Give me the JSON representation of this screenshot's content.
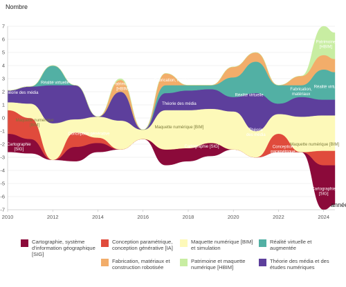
{
  "chart_data": {
    "type": "area",
    "subtype": "streamgraph",
    "ylabel": "Nombre",
    "xlabel": "année",
    "xlim": [
      2010,
      2024.5
    ],
    "ylim": [
      -7,
      7
    ],
    "x_ticks": [
      2010,
      2012,
      2014,
      2016,
      2018,
      2020,
      2022,
      2024
    ],
    "y_ticks": [
      -7,
      -6,
      -5,
      -4,
      -3,
      -2,
      -1,
      0,
      1,
      2,
      3,
      4,
      5,
      6,
      7
    ],
    "x": [
      2010,
      2011,
      2012,
      2013,
      2014,
      2015,
      2016,
      2017,
      2018,
      2019,
      2020,
      2021,
      2022,
      2023,
      2024,
      2024.5
    ],
    "series": [
      {
        "key": "sig",
        "name": "Cartographie, système d'information géographique [SIG]",
        "color": "#8b0a3a",
        "lower": [
          -2.6,
          -2.7,
          -3.2,
          -3.3,
          -2.6,
          -2.4,
          -1.6,
          -3.6,
          -3.3,
          -2.9,
          -2.4,
          -3.0,
          -2.6,
          -2.6,
          -7.0,
          -6.6
        ],
        "upper": [
          -1.2,
          -1.6,
          -3.2,
          -2.2,
          -1.9,
          -2.4,
          -1.6,
          -2.4,
          -2.3,
          -1.9,
          -2.4,
          -3.0,
          -2.6,
          -2.6,
          -3.6,
          -3.6
        ]
      },
      {
        "key": "ia",
        "name": "Conception paramétrique, conception générative [IA]",
        "color": "#e04b3c",
        "lower": [
          -1.2,
          -1.6,
          -3.2,
          -2.2,
          -1.9,
          -2.4,
          -1.6,
          -2.4,
          -2.3,
          -1.9,
          -2.4,
          -3.0,
          -2.6,
          -2.6,
          -3.6,
          -3.6
        ],
        "upper": [
          0.6,
          0.0,
          -3.2,
          -1.1,
          -1.5,
          -2.4,
          -1.6,
          -2.4,
          -2.3,
          -1.9,
          -2.4,
          -3.0,
          -1.2,
          -2.6,
          -2.5,
          -2.5
        ]
      },
      {
        "key": "bim",
        "name": "Maquette numérique [BIM] et simulation",
        "color": "#fdf9b9",
        "lower": [
          0.6,
          0.0,
          -3.2,
          -1.1,
          -1.5,
          -2.4,
          -1.6,
          -2.4,
          -2.3,
          -1.9,
          -2.4,
          -3.0,
          -1.2,
          -2.6,
          -2.5,
          -2.5
        ],
        "upper": [
          1.2,
          1.1,
          -0.4,
          -0.1,
          0.1,
          -0.2,
          -0.9,
          0.6,
          0.6,
          0.7,
          0.5,
          -1.0,
          0.3,
          0.1,
          0.2,
          0.2
        ]
      },
      {
        "key": "media",
        "name": "Théorie des média et des études numériques",
        "color": "#5d3f9c",
        "lower": [
          1.2,
          1.1,
          -0.4,
          -0.1,
          0.1,
          -0.2,
          -0.9,
          0.6,
          0.6,
          0.7,
          0.5,
          -1.0,
          0.3,
          0.1,
          0.2,
          0.2
        ],
        "upper": [
          2.1,
          2.4,
          2.5,
          2.5,
          0.1,
          2.0,
          -0.9,
          1.9,
          2.1,
          2.2,
          1.6,
          1.9,
          1.1,
          1.6,
          1.4,
          1.4
        ]
      },
      {
        "key": "vr",
        "name": "Réalité virtuelle et augmentée",
        "color": "#52b0a4",
        "lower": [
          2.1,
          2.4,
          2.5,
          2.5,
          0.1,
          2.0,
          -0.9,
          1.9,
          2.1,
          2.2,
          1.6,
          1.9,
          1.1,
          1.6,
          1.4,
          1.4
        ],
        "upper": [
          2.1,
          2.4,
          4.0,
          2.5,
          0.1,
          2.0,
          -0.9,
          2.5,
          2.5,
          2.5,
          3.1,
          4.3,
          2.5,
          2.5,
          3.7,
          3.5
        ]
      },
      {
        "key": "fab",
        "name": "Fabrication, matériaux et construction robotisée",
        "color": "#f2ad6a",
        "lower": [
          2.1,
          2.4,
          4.0,
          2.5,
          0.1,
          2.0,
          -0.9,
          2.5,
          2.5,
          2.5,
          3.1,
          4.3,
          2.5,
          2.5,
          3.7,
          3.5
        ],
        "upper": [
          2.1,
          2.4,
          4.0,
          2.5,
          0.1,
          2.9,
          -0.9,
          3.4,
          2.5,
          2.5,
          3.9,
          5.0,
          2.5,
          3.2,
          4.8,
          4.5
        ]
      },
      {
        "key": "hbim",
        "name": "Patrimoine et maquette numérique [HBIM]",
        "color": "#c8eda2",
        "lower": [
          2.1,
          2.4,
          4.0,
          2.5,
          0.1,
          2.9,
          -0.9,
          3.4,
          2.5,
          2.5,
          3.9,
          5.0,
          2.5,
          3.2,
          4.8,
          4.5
        ],
        "upper": [
          2.1,
          2.4,
          4.0,
          2.5,
          0.1,
          3.0,
          -0.9,
          3.4,
          2.5,
          2.5,
          3.9,
          5.0,
          2.5,
          3.2,
          7.0,
          6.5
        ]
      }
    ],
    "stream_labels": [
      {
        "series": "media",
        "x": 2010.6,
        "y": 1.85,
        "text": "Théorie des média"
      },
      {
        "series": "vr",
        "x": 2012.1,
        "y": 2.6,
        "text": "Réalité virtuelle"
      },
      {
        "series": "bim",
        "x": 2011.2,
        "y": -0.25,
        "text": "Maquette numérique\n[BIM]"
      },
      {
        "series": "ia",
        "x": 2013.6,
        "y": -1.3,
        "text": "Conception générative"
      },
      {
        "series": "sig",
        "x": 2010.5,
        "y": -2.1,
        "text": "Cartographie\n[SIG]"
      },
      {
        "series": "hbim",
        "x": 2015.1,
        "y": 2.5,
        "text": "Patrimoine\n[HBIM]"
      },
      {
        "series": "fab",
        "x": 2017.4,
        "y": 2.8,
        "text": "Fabrication, matériaux"
      },
      {
        "series": "media",
        "x": 2017.6,
        "y": 1.0,
        "text": "Théorie des média"
      },
      {
        "series": "bim",
        "x": 2017.6,
        "y": -0.8,
        "text": "Maquette numérique [BIM]"
      },
      {
        "series": "sig",
        "x": 2018.6,
        "y": -2.25,
        "text": "Cartographie [SIG]"
      },
      {
        "series": "vr",
        "x": 2020.7,
        "y": 1.65,
        "text": "Réalité virtuelle"
      },
      {
        "series": "media",
        "x": 2021.0,
        "y": -1.0,
        "text": "Théorie\ndes média"
      },
      {
        "series": "ia",
        "x": 2022.2,
        "y": -2.3,
        "text": "Conception\nparamétrique"
      },
      {
        "series": "bim",
        "x": 2023.6,
        "y": -2.1,
        "text": "Maquette numérique [BIM]"
      },
      {
        "series": "fab",
        "x": 2023.0,
        "y": 2.1,
        "text": "Fabrication,\nmatériaux"
      },
      {
        "series": "vr",
        "x": 2024.2,
        "y": 2.3,
        "text": "Réalité virtuelle"
      },
      {
        "series": "hbim",
        "x": 2024.1,
        "y": 5.7,
        "text": "Patrimoine\n[HBIM]"
      },
      {
        "series": "sig",
        "x": 2024.0,
        "y": -5.5,
        "text": "Cartographie\n[SIG]"
      }
    ],
    "legend": {
      "placement": "bottom",
      "items": [
        {
          "key": "sig",
          "label": "Cartographie, système\nd'information géographique\n[SIG]"
        },
        {
          "key": "ia",
          "label": "Conception paramétrique,\nconception générative [IA]"
        },
        {
          "key": "bim",
          "label": "Maquette numérique [BIM]\net simulation"
        },
        {
          "key": "vr",
          "label": "Réalité virtuelle et\naugmentée"
        },
        {
          "key": "fab",
          "label": "Fabrication, matériaux et\nconstruction robotisée"
        },
        {
          "key": "hbim",
          "label": "Patrimoine et maquette\nnumérique [HBIM]"
        },
        {
          "key": "media",
          "label": "Théorie des média et des\nétudes numériques"
        }
      ]
    }
  }
}
